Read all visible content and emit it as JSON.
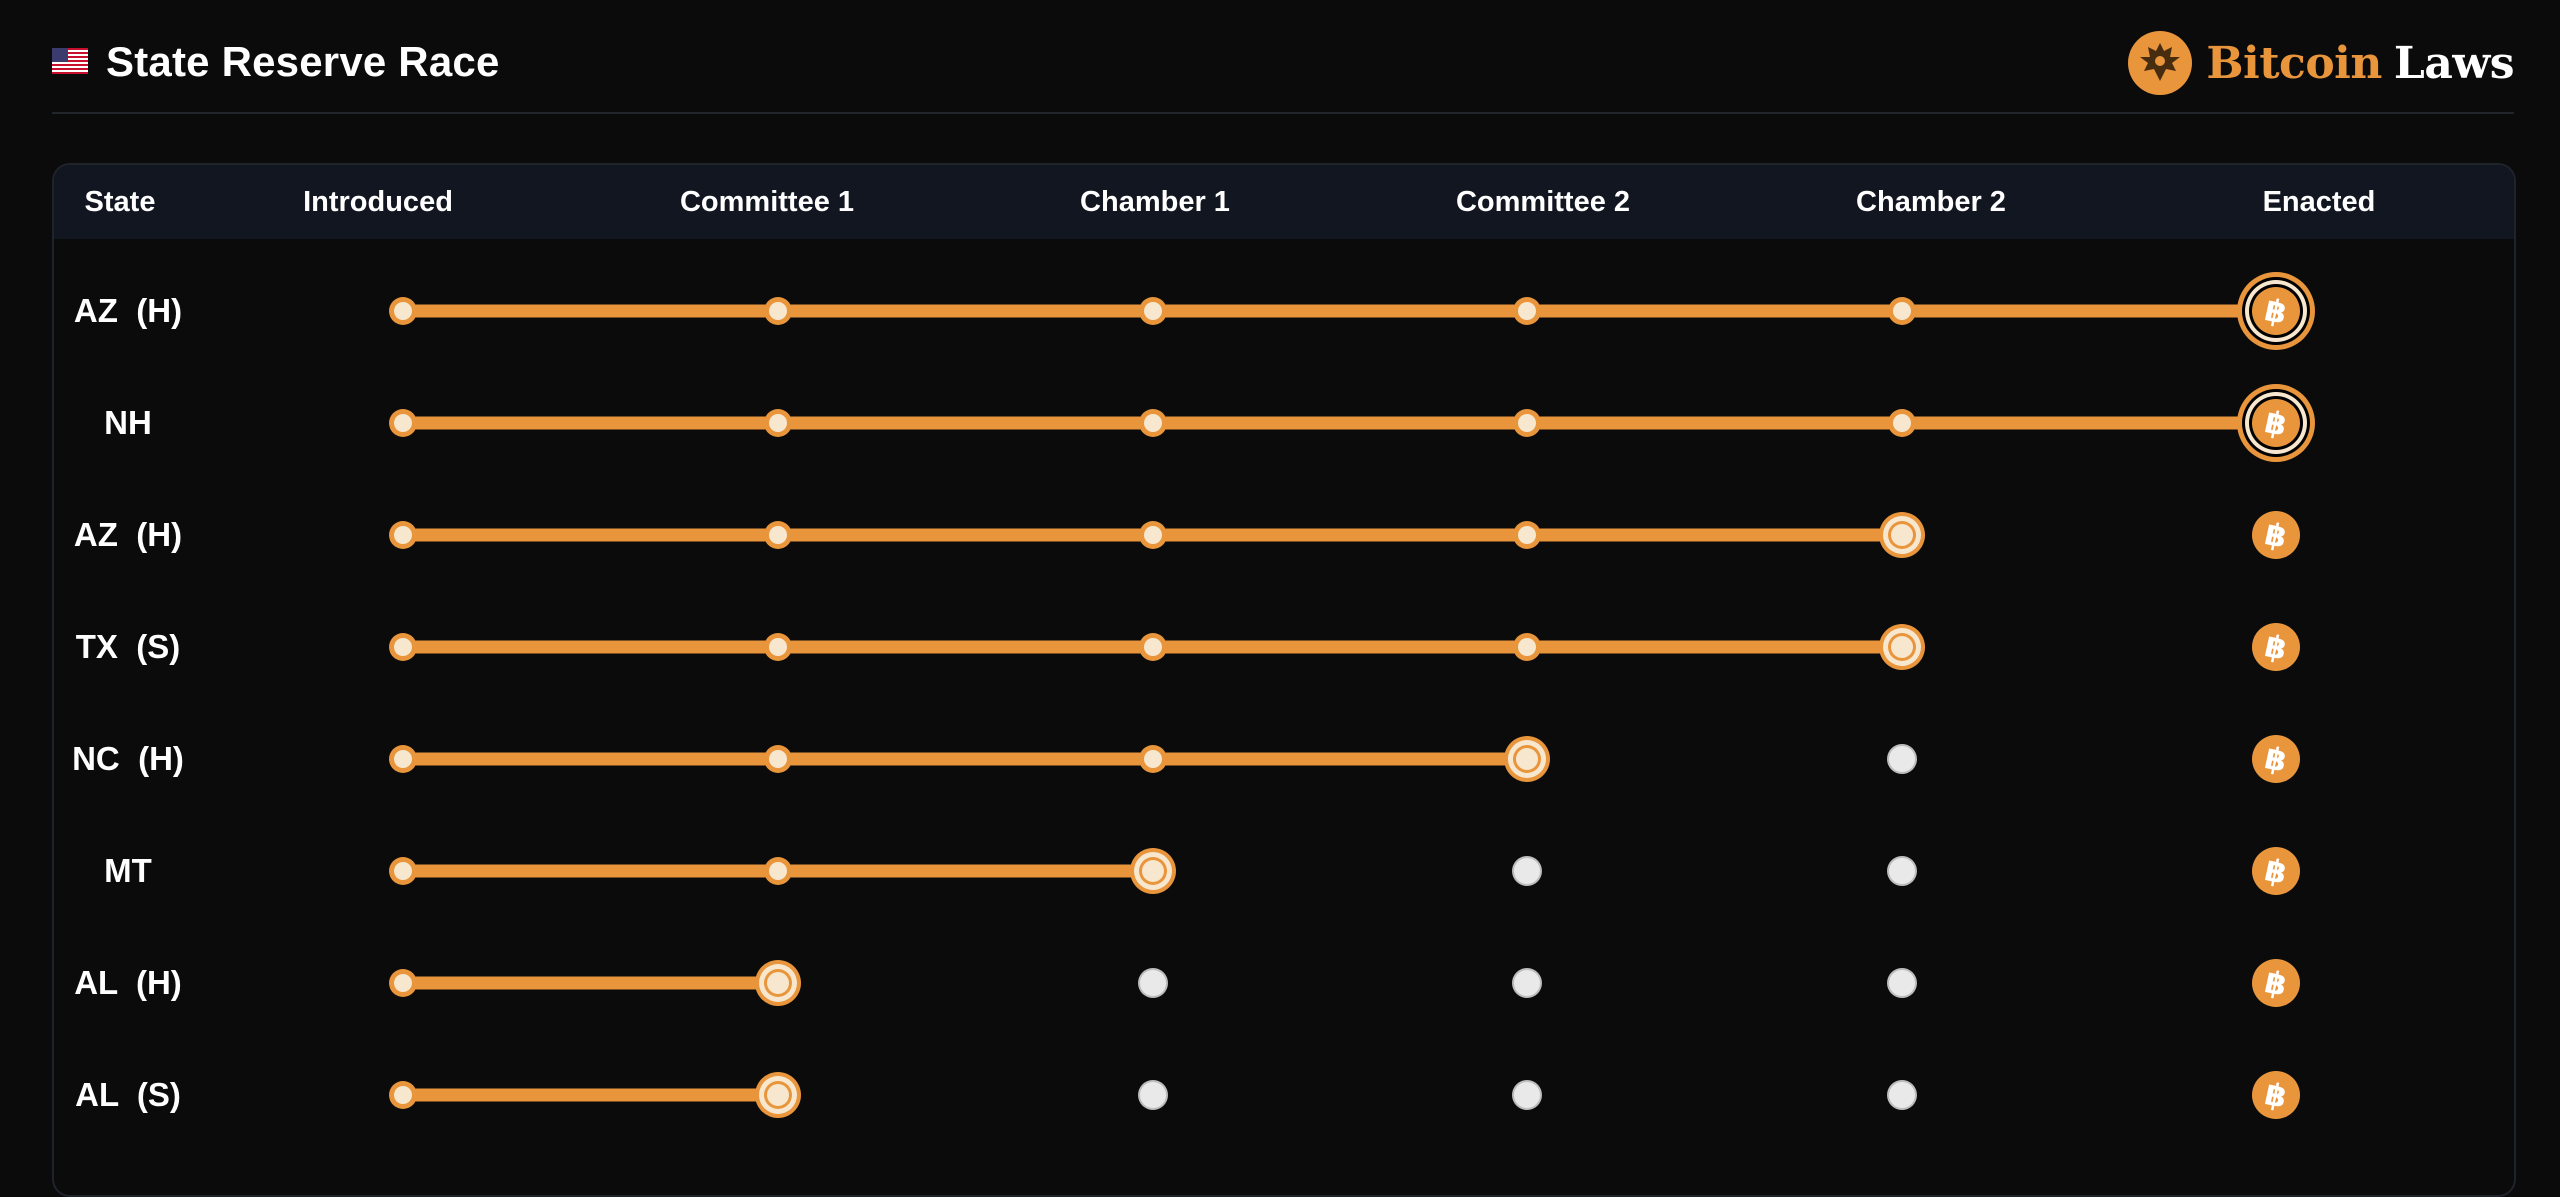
{
  "header": {
    "flag_icon": "us-flag-icon",
    "title": "State Reserve Race",
    "brand": {
      "logo_icon": "eagle-seal-icon",
      "word1": "Bitcoin",
      "word2": "Laws"
    }
  },
  "colors": {
    "background": "#0b0b0b",
    "accent": "#e9953c",
    "header_row": "#111621",
    "node_fill": "#f7e7cf",
    "pending_node": "#e9e9e9"
  },
  "table": {
    "columns": [
      "State",
      "Introduced",
      "Committee 1",
      "Chamber 1",
      "Committee 2",
      "Chamber 2",
      "Enacted"
    ],
    "rows": [
      {
        "state": "AZ  (H)",
        "stage_reached": 5,
        "status": "enacted"
      },
      {
        "state": "NH",
        "stage_reached": 5,
        "status": "enacted"
      },
      {
        "state": "AZ  (H)",
        "stage_reached": 4,
        "status": "in-progress"
      },
      {
        "state": "TX  (S)",
        "stage_reached": 4,
        "status": "in-progress"
      },
      {
        "state": "NC  (H)",
        "stage_reached": 3,
        "status": "in-progress"
      },
      {
        "state": "MT",
        "stage_reached": 2,
        "status": "in-progress"
      },
      {
        "state": "AL  (H)",
        "stage_reached": 1,
        "status": "in-progress"
      },
      {
        "state": "AL  (S)",
        "stage_reached": 1,
        "status": "in-progress"
      }
    ],
    "enacted_icon": "bitcoin-icon"
  }
}
